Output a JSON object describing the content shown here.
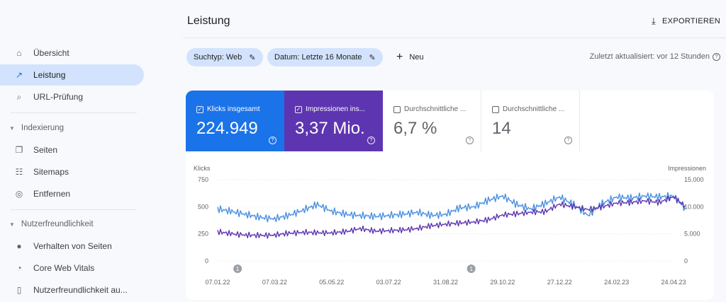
{
  "sidebar": {
    "items": [
      {
        "label": "Übersicht",
        "icon": "home-icon",
        "glyph": "⌂",
        "active": false
      },
      {
        "label": "Leistung",
        "icon": "trending-up-icon",
        "glyph": "↗",
        "active": true
      },
      {
        "label": "URL-Prüfung",
        "icon": "search-icon",
        "glyph": "⌕",
        "active": false
      }
    ],
    "sections": [
      {
        "label": "Indexierung",
        "items": [
          {
            "label": "Seiten",
            "icon": "pages-icon",
            "glyph": "❐"
          },
          {
            "label": "Sitemaps",
            "icon": "sitemap-icon",
            "glyph": "☷"
          },
          {
            "label": "Entfernen",
            "icon": "visibility-off-icon",
            "glyph": "◎"
          }
        ]
      },
      {
        "label": "Nutzerfreundlichkeit",
        "items": [
          {
            "label": "Verhalten von Seiten",
            "icon": "page-experience-icon",
            "glyph": "●"
          },
          {
            "label": "Core Web Vitals",
            "icon": "speed-gauge-icon",
            "glyph": "◔"
          },
          {
            "label": "Nutzerfreundlichkeit au...",
            "icon": "smartphone-icon",
            "glyph": "▯"
          }
        ]
      }
    ]
  },
  "header": {
    "title": "Leistung",
    "export_label": "EXPORTIEREN"
  },
  "filters": {
    "search_type": "Suchtyp: Web",
    "date": "Datum: Letzte 16 Monate",
    "new_label": "Neu",
    "last_updated": "Zuletzt aktualisiert: vor 12 Stunden"
  },
  "metrics": [
    {
      "label": "Klicks insgesamt",
      "value": "224.949",
      "checked": true,
      "color": "#1a73e8"
    },
    {
      "label": "Impressionen ins...",
      "value": "3,37 Mio.",
      "checked": true,
      "color": "#5e35b1"
    },
    {
      "label": "Durchschnittliche ...",
      "value": "6,7 %",
      "checked": false
    },
    {
      "label": "Durchschnittliche ...",
      "value": "14",
      "checked": false
    }
  ],
  "chart_data": {
    "type": "line",
    "x_labels": [
      "07.01.22",
      "07.03.22",
      "05.05.22",
      "03.07.22",
      "31.08.22",
      "29.10.22",
      "27.12.22",
      "24.02.23",
      "24.04.23"
    ],
    "left_axis": {
      "label": "Klicks",
      "ticks": [
        "750",
        "500",
        "250",
        "0"
      ],
      "ylim": [
        0,
        750
      ]
    },
    "right_axis": {
      "label": "Impressionen",
      "ticks": [
        "15.000",
        "10.000",
        "5.000",
        "0"
      ],
      "ylim": [
        0,
        15000
      ]
    },
    "annotations": [
      {
        "label": "1",
        "x_index": 0.35
      },
      {
        "label": "1",
        "x_index": 4.45
      }
    ],
    "series": [
      {
        "name": "Klicks",
        "axis": "left",
        "color": "#4a90e2",
        "x": [
          0,
          0.25,
          0.5,
          0.75,
          1,
          1.25,
          1.5,
          1.75,
          2,
          2.25,
          2.5,
          2.75,
          3,
          3.25,
          3.5,
          3.75,
          4,
          4.25,
          4.5,
          4.75,
          5,
          5.25,
          5.5,
          5.75,
          6,
          6.25,
          6.5,
          6.75,
          7,
          7.25,
          7.5,
          7.75,
          8,
          8.2
        ],
        "values": [
          480,
          455,
          430,
          400,
          390,
          420,
          470,
          520,
          460,
          430,
          420,
          410,
          420,
          430,
          450,
          420,
          430,
          490,
          500,
          560,
          600,
          520,
          480,
          530,
          590,
          520,
          420,
          530,
          590,
          580,
          600,
          590,
          600,
          490
        ]
      },
      {
        "name": "Impressionen",
        "axis": "right",
        "color": "#5e35b1",
        "x": [
          0,
          0.25,
          0.5,
          0.75,
          1,
          1.25,
          1.5,
          1.75,
          2,
          2.25,
          2.5,
          2.75,
          3,
          3.25,
          3.5,
          3.75,
          4,
          4.25,
          4.5,
          4.75,
          5,
          5.25,
          5.5,
          5.75,
          6,
          6.25,
          6.5,
          6.75,
          7,
          7.25,
          7.5,
          7.75,
          8,
          8.2
        ],
        "values": [
          5400,
          5000,
          4800,
          4700,
          4800,
          5100,
          5300,
          5200,
          5200,
          5400,
          6000,
          5500,
          5600,
          5700,
          6000,
          6500,
          6800,
          7000,
          7200,
          7600,
          8500,
          8700,
          9000,
          9100,
          10500,
          10000,
          9500,
          10000,
          10700,
          10800,
          11100,
          10800,
          11800,
          10200
        ]
      }
    ]
  }
}
